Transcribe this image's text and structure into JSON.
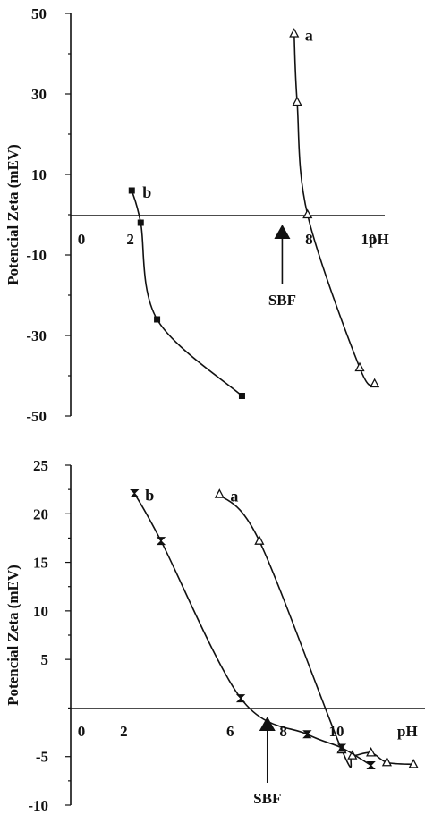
{
  "chart_data": [
    {
      "type": "line",
      "title": "",
      "xlabel": "pH",
      "ylabel": "Potencial Zeta (mEV)",
      "xlim": [
        0,
        10.6
      ],
      "ylim": [
        -50,
        50
      ],
      "x_ticks": [
        0,
        2,
        8,
        10
      ],
      "y_ticks": [
        50,
        30,
        10,
        -10,
        -30,
        -50
      ],
      "grid": false,
      "series": [
        {
          "name": "a",
          "marker": "triangle",
          "x": [
            7.5,
            7.6,
            7.95,
            9.7,
            10.2
          ],
          "y": [
            45,
            28,
            0,
            -38,
            -42
          ]
        },
        {
          "name": "b",
          "marker": "square",
          "x": [
            2.05,
            2.35,
            2.9,
            5.75
          ],
          "y": [
            6,
            -2,
            -26,
            -45
          ]
        }
      ],
      "annotations": [
        {
          "text": "SBF",
          "x": 7.1,
          "kind": "arrow"
        }
      ]
    },
    {
      "type": "line",
      "title": "",
      "xlabel": "pH",
      "ylabel": "Potencial Zeta (mEV)",
      "xlim": [
        0,
        13.2
      ],
      "ylim": [
        -10,
        25
      ],
      "x_ticks": [
        0,
        2,
        6,
        8,
        10
      ],
      "y_ticks": [
        25,
        20,
        15,
        10,
        5,
        -5,
        -10
      ],
      "grid": false,
      "series": [
        {
          "name": "a",
          "marker": "triangle",
          "x": [
            5.6,
            7.1,
            10.2,
            10.6,
            11.3,
            11.9,
            12.9
          ],
          "y": [
            22,
            17.2,
            -4.3,
            -4.9,
            -4.6,
            -5.6,
            -5.8
          ]
        },
        {
          "name": "b",
          "marker": "hourglass",
          "x": [
            2.4,
            3.4,
            6.4,
            8.9,
            10.2,
            11.3
          ],
          "y": [
            22.1,
            17.2,
            1.0,
            -2.7,
            -4.1,
            -5.9
          ]
        }
      ],
      "annotations": [
        {
          "text": "SBF",
          "x": 7.4,
          "kind": "arrow"
        }
      ]
    }
  ]
}
